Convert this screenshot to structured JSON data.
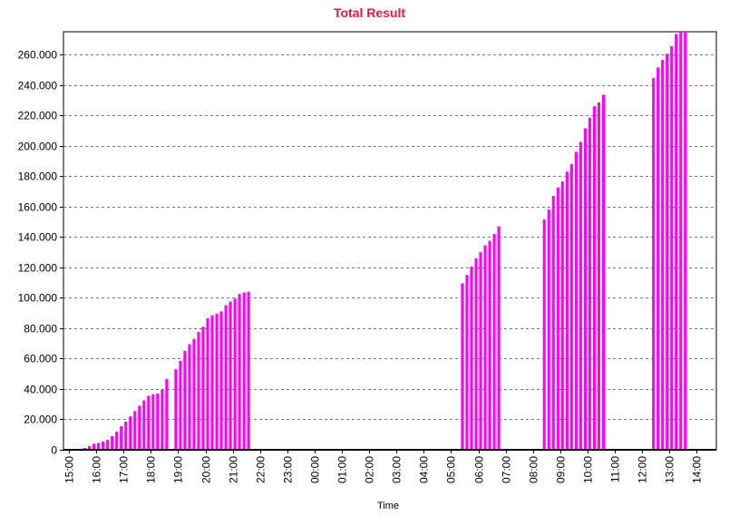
{
  "chart_data": {
    "type": "bar",
    "title": "Total Result",
    "xlabel": "Time",
    "ylabel": "",
    "ylim": [
      0,
      275000
    ],
    "grid": true,
    "legend": "none",
    "colors": {
      "title": "#e8193c",
      "bar": "#ff00ff",
      "grid": "#777777",
      "axis": "#000000"
    },
    "y_ticks": [
      {
        "value": 0,
        "label": "0"
      },
      {
        "value": 20000,
        "label": "20.000"
      },
      {
        "value": 40000,
        "label": "40.000"
      },
      {
        "value": 60000,
        "label": "60.000"
      },
      {
        "value": 80000,
        "label": "80.000"
      },
      {
        "value": 100000,
        "label": "100.000"
      },
      {
        "value": 120000,
        "label": "120.000"
      },
      {
        "value": 140000,
        "label": "140.000"
      },
      {
        "value": 160000,
        "label": "160.000"
      },
      {
        "value": 180000,
        "label": "180.000"
      },
      {
        "value": 200000,
        "label": "200.000"
      },
      {
        "value": 220000,
        "label": "220.000"
      },
      {
        "value": 240000,
        "label": "240.000"
      },
      {
        "value": 260000,
        "label": "260.000"
      }
    ],
    "x_tick_labels": [
      "15:00",
      "16:00",
      "17:00",
      "18:00",
      "19:00",
      "20:00",
      "21:00",
      "22:00",
      "23:00",
      "00:00",
      "01:00",
      "02:00",
      "03:00",
      "04:00",
      "05:00",
      "06:00",
      "07:00",
      "08:00",
      "09:00",
      "10:00",
      "11:00",
      "12:00",
      "13:00",
      "14:00"
    ],
    "x": [
      "15:15",
      "15:25",
      "15:35",
      "15:45",
      "15:55",
      "16:05",
      "16:15",
      "16:25",
      "16:35",
      "16:45",
      "16:55",
      "17:05",
      "17:15",
      "17:25",
      "17:35",
      "17:45",
      "17:55",
      "18:05",
      "18:15",
      "18:25",
      "18:35",
      "18:55",
      "19:05",
      "19:15",
      "19:25",
      "19:35",
      "19:45",
      "19:55",
      "20:05",
      "20:15",
      "20:25",
      "20:35",
      "20:45",
      "20:55",
      "21:05",
      "21:15",
      "21:25",
      "21:35",
      "05:25",
      "05:35",
      "05:45",
      "05:55",
      "06:05",
      "06:15",
      "06:25",
      "06:35",
      "06:45",
      "08:25",
      "08:35",
      "08:45",
      "08:55",
      "09:05",
      "09:15",
      "09:25",
      "09:35",
      "09:45",
      "09:55",
      "10:05",
      "10:15",
      "10:25",
      "10:35",
      "12:25",
      "12:35",
      "12:45",
      "12:55",
      "13:05",
      "13:15",
      "13:25",
      "13:35"
    ],
    "values": [
      0,
      500,
      1200,
      2500,
      4000,
      4500,
      5500,
      6500,
      9000,
      12000,
      15500,
      18500,
      22000,
      25500,
      29000,
      32500,
      35500,
      36500,
      37000,
      39500,
      46500,
      53000,
      58500,
      65000,
      69500,
      73000,
      77500,
      81000,
      86500,
      88500,
      89500,
      91000,
      95000,
      97500,
      99500,
      102500,
      103500,
      104000,
      109500,
      115000,
      120500,
      126000,
      130000,
      134500,
      137500,
      142000,
      147000,
      151500,
      158000,
      167000,
      172500,
      176500,
      183000,
      188000,
      196000,
      202500,
      211500,
      218500,
      226000,
      228500,
      233500,
      244500,
      251500,
      256500,
      260500,
      265500,
      273500,
      276000,
      276000
    ]
  }
}
